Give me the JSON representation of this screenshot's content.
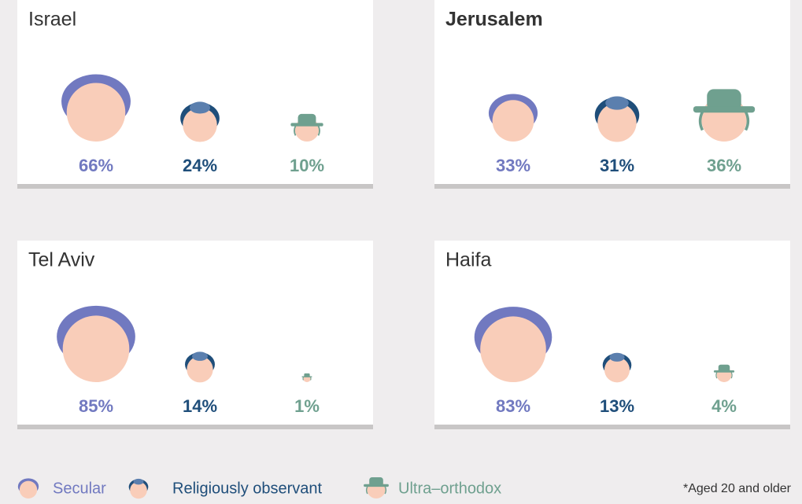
{
  "chart_data": [
    {
      "type": "icon",
      "title": "Israel",
      "values": [
        66,
        24,
        10
      ],
      "value_labels": [
        "66%",
        "24%",
        "10%"
      ]
    },
    {
      "type": "icon",
      "title": "Jerusalem",
      "values": [
        33,
        31,
        36
      ],
      "value_labels": [
        "33%",
        "31%",
        "36%"
      ]
    },
    {
      "type": "icon",
      "title": "Tel Aviv",
      "values": [
        85,
        14,
        1
      ],
      "value_labels": [
        "85%",
        "14%",
        "1%"
      ]
    },
    {
      "type": "icon",
      "title": "Haifa",
      "values": [
        83,
        13,
        4
      ],
      "value_labels": [
        "83%",
        "13%",
        "4%"
      ]
    }
  ],
  "legend": [
    {
      "name": "Secular",
      "color": "#7179c0"
    },
    {
      "name": "Religiously observant",
      "color": "#1f4e7a"
    },
    {
      "name": "Ultra–orthodox",
      "color": "#6fa08f"
    }
  ],
  "footnote": "*Aged 20 and older"
}
